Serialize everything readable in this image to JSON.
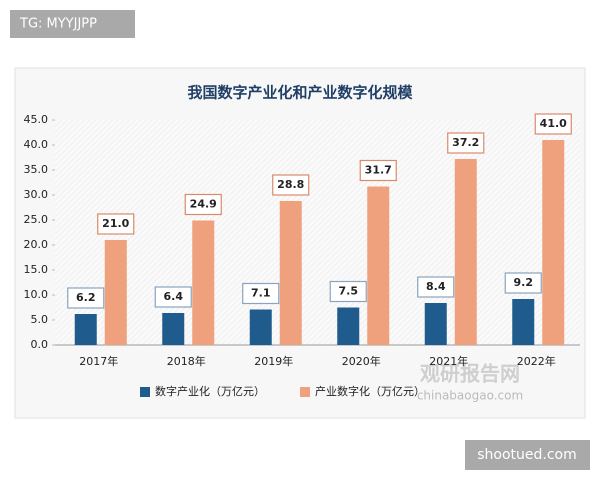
{
  "chart_data": {
    "type": "bar",
    "title": "我国数字产业化和产业数字化规模",
    "categories": [
      "2017年",
      "2018年",
      "2019年",
      "2020年",
      "2021年",
      "2022年"
    ],
    "series": [
      {
        "name": "数字产业化（万亿元）",
        "color": "#1f5b8c",
        "values": [
          6.2,
          6.4,
          7.1,
          7.5,
          8.4,
          9.2
        ],
        "value_labels": [
          "6.2",
          "6.4",
          "7.1",
          "7.5",
          "8.4",
          "9.2"
        ]
      },
      {
        "name": "产业数字化（万亿元）",
        "color": "#efa07c",
        "values": [
          21.0,
          24.9,
          28.8,
          31.7,
          37.2,
          41.0
        ],
        "value_labels": [
          "21.0",
          "24.9",
          "28.8",
          "31.7",
          "37.2",
          "41.0"
        ]
      }
    ],
    "ylim": [
      0,
      45
    ],
    "yticks": [
      {
        "value": 0,
        "label": "0.0"
      },
      {
        "value": 5,
        "label": "5.0"
      },
      {
        "value": 10,
        "label": "10.0"
      },
      {
        "value": 15,
        "label": "15.0"
      },
      {
        "value": 20,
        "label": "20.0"
      },
      {
        "value": 25,
        "label": "25.0"
      },
      {
        "value": 30,
        "label": "30.0"
      },
      {
        "value": 35,
        "label": "35.0"
      },
      {
        "value": 40,
        "label": "40.0"
      },
      {
        "value": 45,
        "label": "45.0"
      }
    ],
    "legend": "bottom"
  },
  "watermarks": {
    "top_left": "TG: MYYJJPP",
    "bottom_right": "shootued.com",
    "brand": "观研报告网",
    "brand_url": "chinabaogao.com"
  }
}
